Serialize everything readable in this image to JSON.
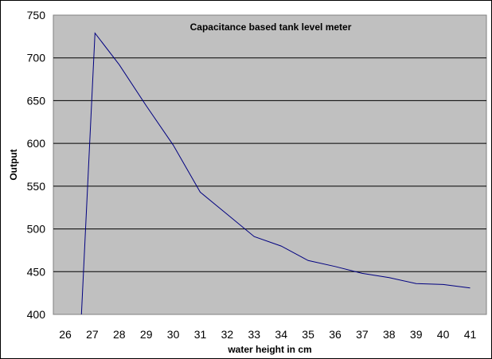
{
  "chart_data": {
    "type": "line",
    "title": "Capacitance based tank level meter",
    "xlabel": "water height in cm",
    "ylabel": "Output",
    "categories": [
      "26",
      "27",
      "28",
      "29",
      "30",
      "31",
      "32",
      "33",
      "34",
      "35",
      "36",
      "37",
      "38",
      "39",
      "40",
      "41"
    ],
    "yticks": [
      "400",
      "450",
      "500",
      "550",
      "600",
      "650",
      "700",
      "750"
    ],
    "ylim": [
      400,
      750
    ],
    "grid": "horizontal",
    "legend": "none",
    "colors": {
      "plot_background": "#c0c0c0",
      "line": "#000080",
      "gridline": "#000000"
    },
    "series": [
      {
        "x": [
          26.6,
          27.1,
          28.0,
          29.0,
          30.0,
          31.0,
          32.0,
          33.0,
          34.0,
          35.0,
          36.0,
          37.0,
          38.0,
          39.0,
          40.0,
          41.0
        ],
        "values": [
          400,
          729,
          692,
          644,
          598,
          543,
          517,
          491,
          480,
          463,
          456,
          448,
          443,
          436,
          435,
          431
        ]
      }
    ]
  }
}
